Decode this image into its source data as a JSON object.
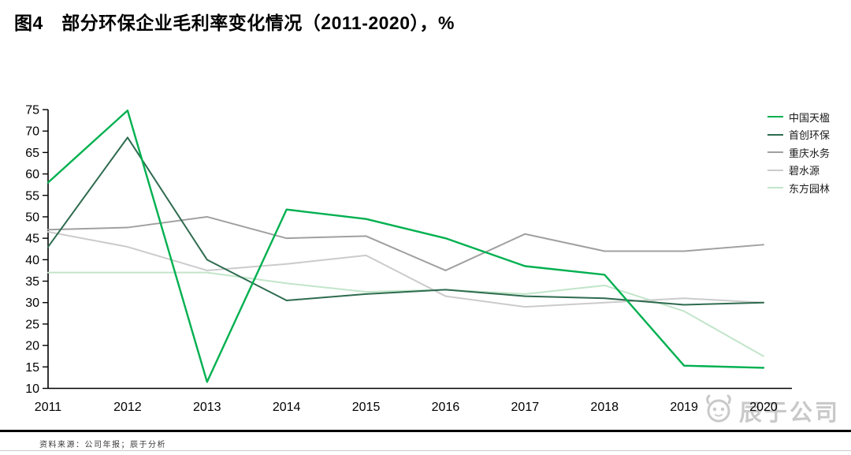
{
  "header": {
    "title": "图4　部分环保企业毛利率变化情况（2011-2020），%"
  },
  "chart_data": {
    "type": "line",
    "x": [
      2011,
      2012,
      2013,
      2014,
      2015,
      2016,
      2017,
      2018,
      2019,
      2020
    ],
    "ylim": [
      10,
      75
    ],
    "ytick_step": 5,
    "grid": false,
    "legend_position": "right",
    "axis_color": "#000000",
    "series": [
      {
        "name": "中国天楹",
        "color": "#00B050",
        "values": [
          58,
          74.8,
          11.5,
          51.7,
          49.5,
          45,
          38.5,
          36.5,
          15.3,
          14.8
        ]
      },
      {
        "name": "首创环保",
        "color": "#2E6B4F",
        "values": [
          43,
          68.5,
          40,
          30.5,
          32,
          33,
          31.5,
          31,
          29.5,
          30
        ]
      },
      {
        "name": "重庆水务",
        "color": "#A0A0A0",
        "values": [
          47,
          47.5,
          50,
          45,
          45.5,
          37.5,
          46,
          42,
          42,
          43.5
        ]
      },
      {
        "name": "碧水源",
        "color": "#CBCBCB",
        "values": [
          46.5,
          43,
          37.5,
          39,
          41,
          31.5,
          29,
          30,
          31,
          30
        ]
      },
      {
        "name": "东方园林",
        "color": "#C2E5CA",
        "values": [
          37,
          37,
          37,
          34.5,
          32.5,
          33,
          32,
          34,
          28,
          17.5
        ]
      }
    ]
  },
  "footer": {
    "source": "资料来源：公司年报；辰于分析"
  },
  "watermark": {
    "text": "辰于公司"
  }
}
